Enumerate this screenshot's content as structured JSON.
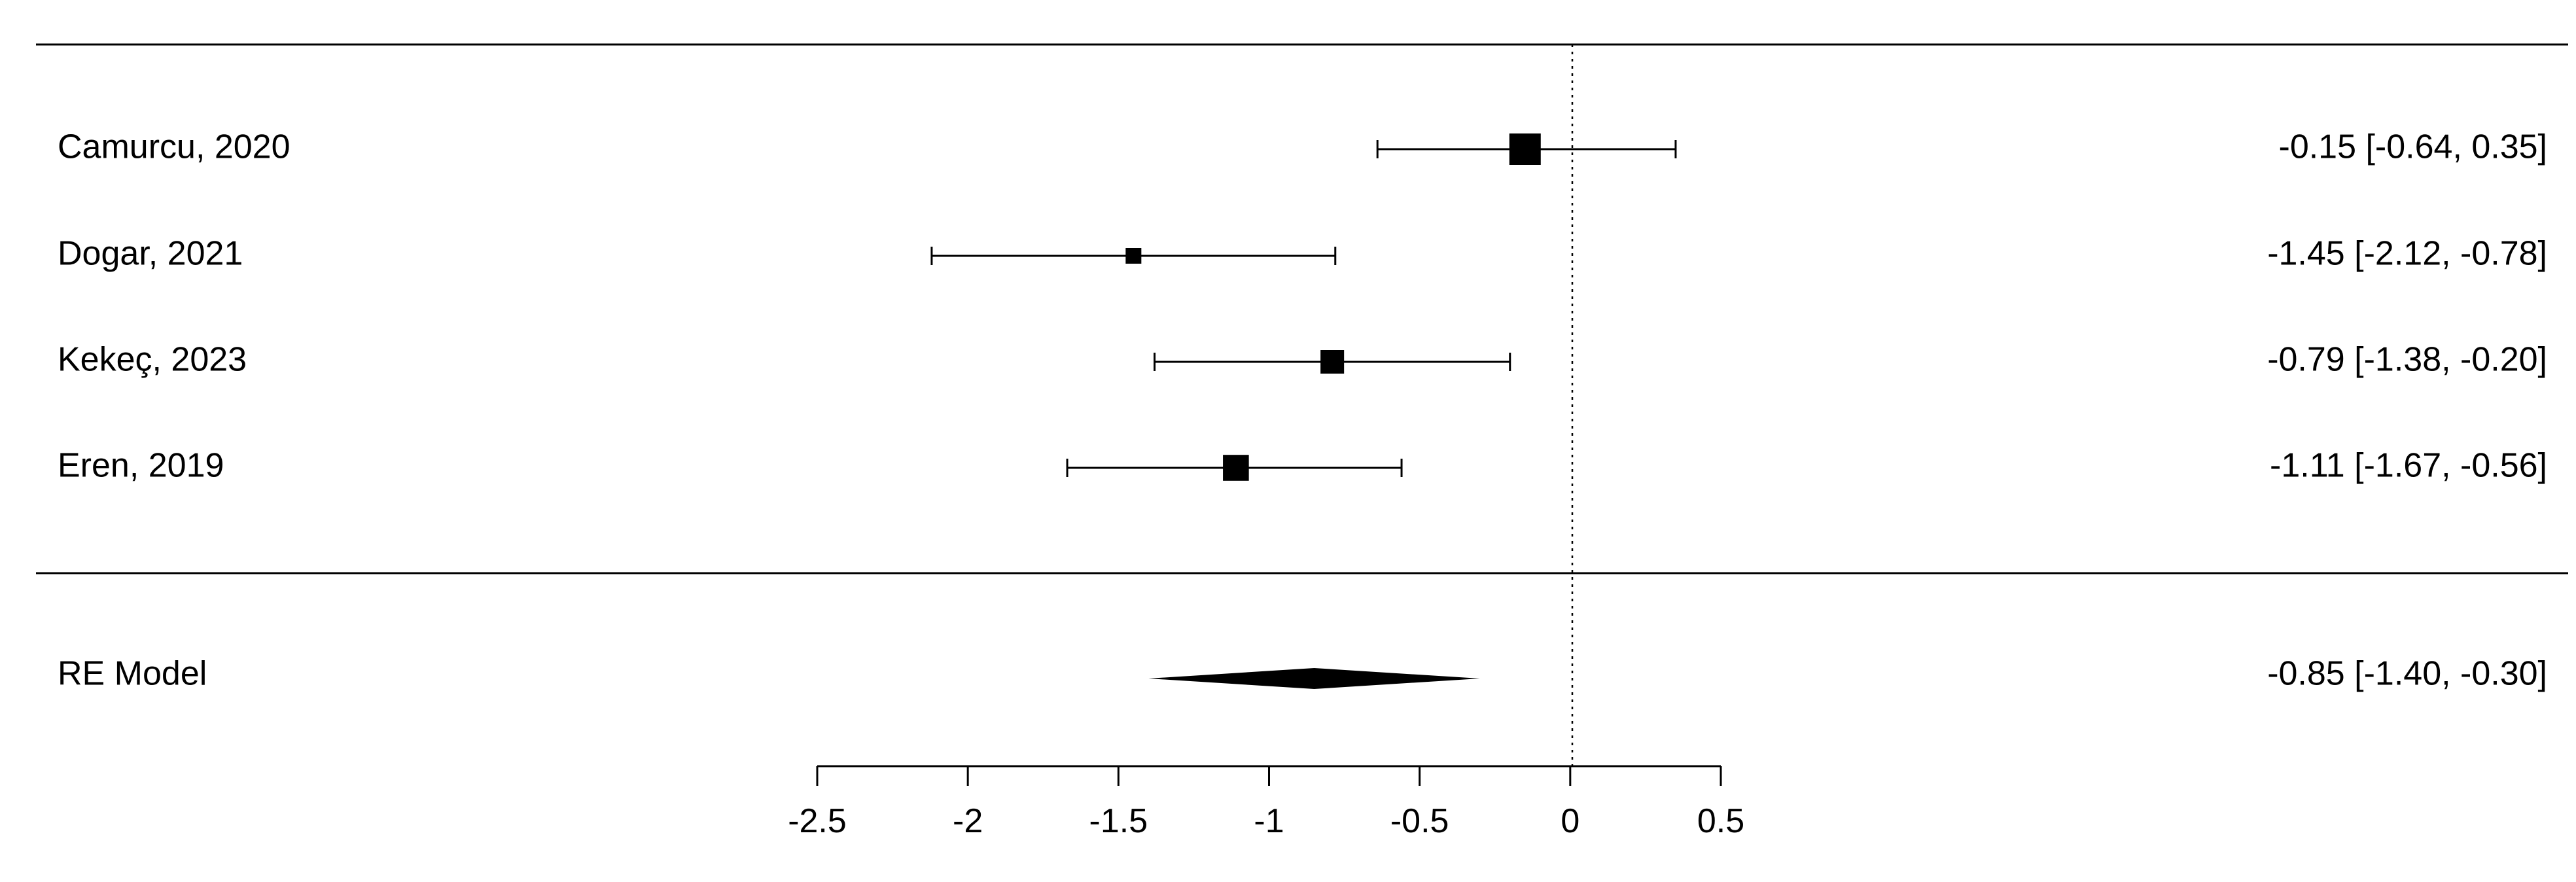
{
  "chart_data": {
    "type": "forest",
    "title": "",
    "xlabel": "",
    "ylabel": "",
    "xlim": [
      -2.5,
      0.5
    ],
    "reference_line": 0,
    "x_ticks": [
      "-2.5",
      "-2",
      "-1.5",
      "-1",
      "-0.5",
      "0",
      "0.5"
    ],
    "x_tick_values": [
      -2.5,
      -2,
      -1.5,
      -1,
      -0.5,
      0,
      0.5
    ],
    "studies": [
      {
        "label": "Camurcu, 2020",
        "estimate": -0.15,
        "ci_low": -0.64,
        "ci_high": 0.35,
        "weight": 3,
        "ci_text": "-0.15 [-0.64,  0.35]"
      },
      {
        "label": "Dogar, 2021",
        "estimate": -1.45,
        "ci_low": -2.12,
        "ci_high": -0.78,
        "weight": 1,
        "ci_text": "-1.45 [-2.12, -0.78]"
      },
      {
        "label": "Kekeç, 2023",
        "estimate": -0.79,
        "ci_low": -1.38,
        "ci_high": -0.2,
        "weight": 2,
        "ci_text": "-0.79 [-1.38, -0.20]"
      },
      {
        "label": "Eren, 2019",
        "estimate": -1.11,
        "ci_low": -1.67,
        "ci_high": -0.56,
        "weight": 2.3,
        "ci_text": "-1.11 [-1.67, -0.56]"
      }
    ],
    "summary": {
      "label": "RE Model",
      "estimate": -0.85,
      "ci_low": -1.4,
      "ci_high": -0.3,
      "ci_text": "-0.85 [-1.40, -0.30]"
    },
    "colors": {
      "marker": "#000000",
      "line": "#000000",
      "reference": "#000000"
    }
  }
}
